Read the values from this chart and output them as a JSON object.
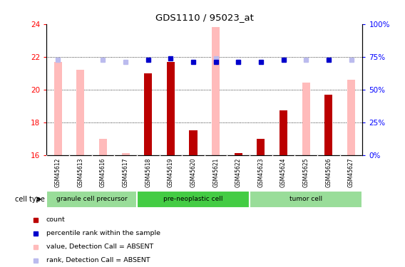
{
  "title": "GDS1110 / 95023_at",
  "samples": [
    "GSM45612",
    "GSM45613",
    "GSM45616",
    "GSM45617",
    "GSM45618",
    "GSM45619",
    "GSM45620",
    "GSM45621",
    "GSM45622",
    "GSM45623",
    "GSM45624",
    "GSM45625",
    "GSM45626",
    "GSM45627"
  ],
  "count_values": [
    null,
    null,
    null,
    null,
    21.0,
    21.7,
    17.5,
    null,
    16.1,
    17.0,
    18.7,
    null,
    19.7,
    null
  ],
  "rank_values": [
    null,
    null,
    null,
    null,
    21.8,
    21.9,
    21.7,
    21.7,
    21.7,
    21.7,
    21.8,
    null,
    21.8,
    null
  ],
  "value_absent": [
    21.7,
    21.2,
    17.0,
    16.1,
    null,
    null,
    null,
    23.8,
    null,
    null,
    null,
    20.4,
    null,
    20.6
  ],
  "rank_absent": [
    21.8,
    null,
    21.8,
    21.7,
    null,
    null,
    null,
    21.9,
    21.7,
    null,
    null,
    21.8,
    null,
    21.8
  ],
  "count_color": "#bb0000",
  "rank_color": "#0000cc",
  "value_absent_color": "#ffbbbb",
  "rank_absent_color": "#bbbbee",
  "ylim_left": [
    16,
    24
  ],
  "ylim_right": [
    0,
    100
  ],
  "yticks_left": [
    16,
    18,
    20,
    22,
    24
  ],
  "yticks_right": [
    0,
    25,
    50,
    75,
    100
  ],
  "cell_groups": [
    {
      "label": "granule cell precursor",
      "start": 0,
      "end": 3,
      "color": "#99dd99"
    },
    {
      "label": "pre-neoplastic cell",
      "start": 4,
      "end": 8,
      "color": "#44cc44"
    },
    {
      "label": "tumor cell",
      "start": 9,
      "end": 13,
      "color": "#99dd99"
    }
  ],
  "cell_type_label": "cell type",
  "legend": [
    {
      "label": "count",
      "color": "#bb0000"
    },
    {
      "label": "percentile rank within the sample",
      "color": "#0000cc"
    },
    {
      "label": "value, Detection Call = ABSENT",
      "color": "#ffbbbb"
    },
    {
      "label": "rank, Detection Call = ABSENT",
      "color": "#bbbbee"
    }
  ],
  "bar_width": 0.35,
  "marker_size": 5,
  "grid_lines": [
    18,
    20,
    22
  ]
}
